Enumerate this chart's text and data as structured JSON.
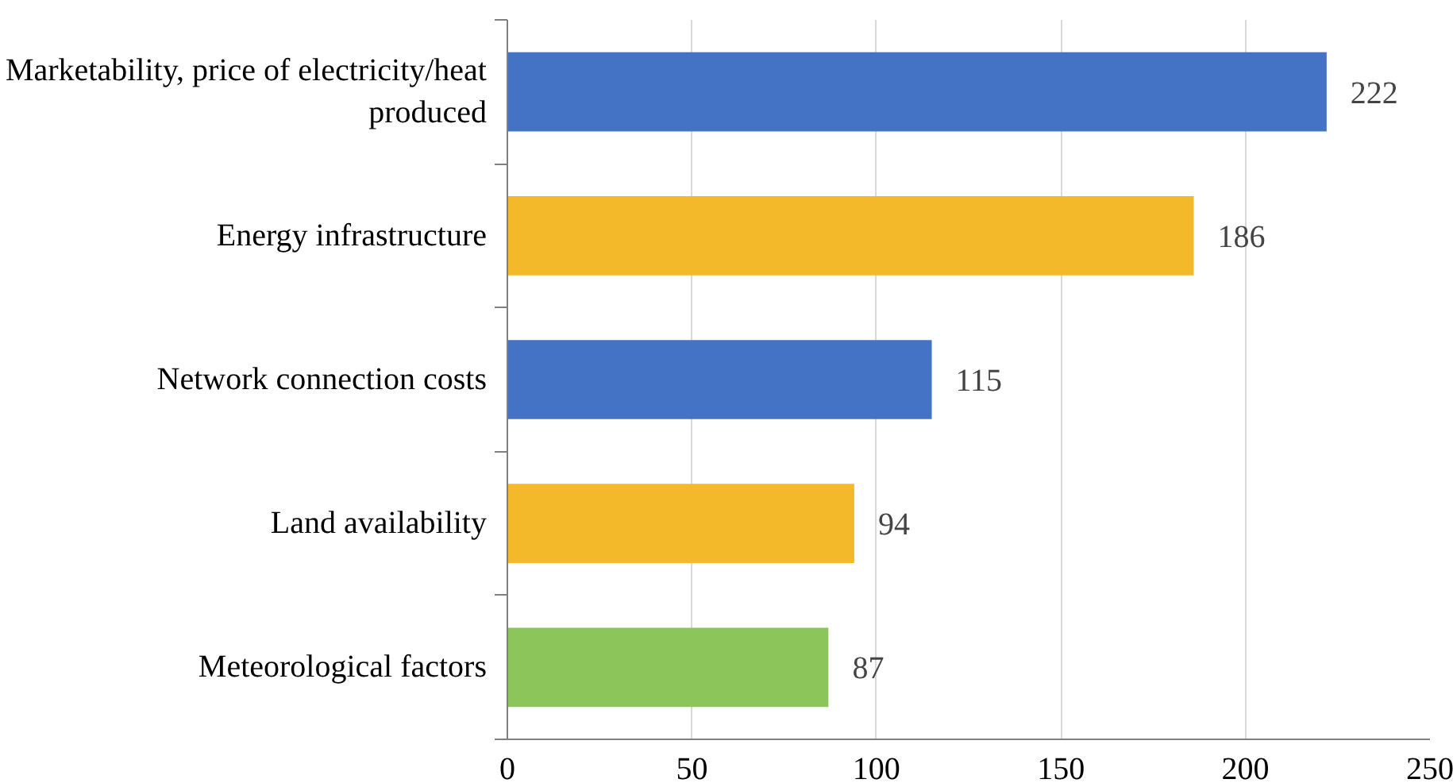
{
  "chart_data": {
    "type": "bar",
    "orientation": "horizontal",
    "categories": [
      "Marketability, price of electricity/heat produced",
      "Energy infrastructure",
      "Network connection costs",
      "Land availability",
      "Meteorological factors"
    ],
    "values": [
      222,
      186,
      115,
      94,
      87
    ],
    "colors": [
      "#4472c4",
      "#f4b92a",
      "#4472c4",
      "#f4b92a",
      "#8cc65a"
    ],
    "xlim": [
      0,
      250
    ],
    "xticks": [
      0,
      50,
      100,
      150,
      200,
      250
    ],
    "grid": "x",
    "data_labels": true
  }
}
